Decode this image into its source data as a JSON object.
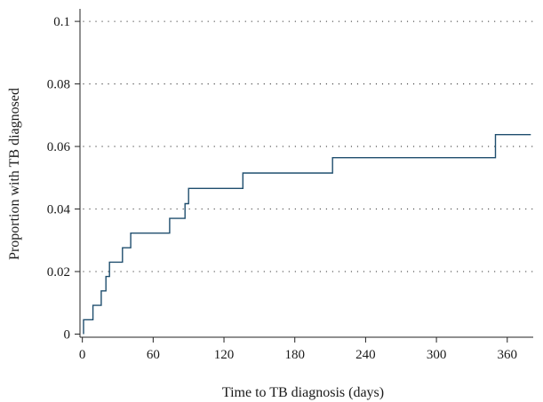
{
  "chart_data": {
    "type": "line",
    "step": true,
    "xlabel": "Time to TB diagnosis (days)",
    "ylabel": "Proportion with TB diagnosed",
    "xlim": [
      -2,
      382
    ],
    "ylim": [
      -0.001,
      0.104
    ],
    "xticks": [
      0,
      60,
      120,
      180,
      240,
      300,
      360
    ],
    "xtick_labels": [
      "0",
      "60",
      "120",
      "180",
      "240",
      "300",
      "360"
    ],
    "yticks": [
      0,
      0.02,
      0.04,
      0.06,
      0.08,
      0.1
    ],
    "ytick_labels": [
      "0",
      "0.02",
      "0.04",
      "0.06",
      "0.08",
      "0.1"
    ],
    "grid": "horizontal-dotted",
    "series": [
      {
        "color": "#1f4e6e",
        "x": [
          1,
          1,
          9,
          9,
          16,
          16,
          20,
          20,
          23,
          23,
          34,
          34,
          41,
          41,
          74,
          74,
          87,
          87,
          90,
          90,
          136,
          136,
          212,
          212,
          350,
          350,
          380
        ],
        "y": [
          0,
          0.0046,
          0.0046,
          0.0092,
          0.0092,
          0.0138,
          0.0138,
          0.0184,
          0.0184,
          0.023,
          0.023,
          0.0276,
          0.0276,
          0.0323,
          0.0323,
          0.037,
          0.037,
          0.0417,
          0.0417,
          0.0466,
          0.0466,
          0.0515,
          0.0515,
          0.0564,
          0.0564,
          0.0638,
          0.0638
        ]
      }
    ]
  }
}
